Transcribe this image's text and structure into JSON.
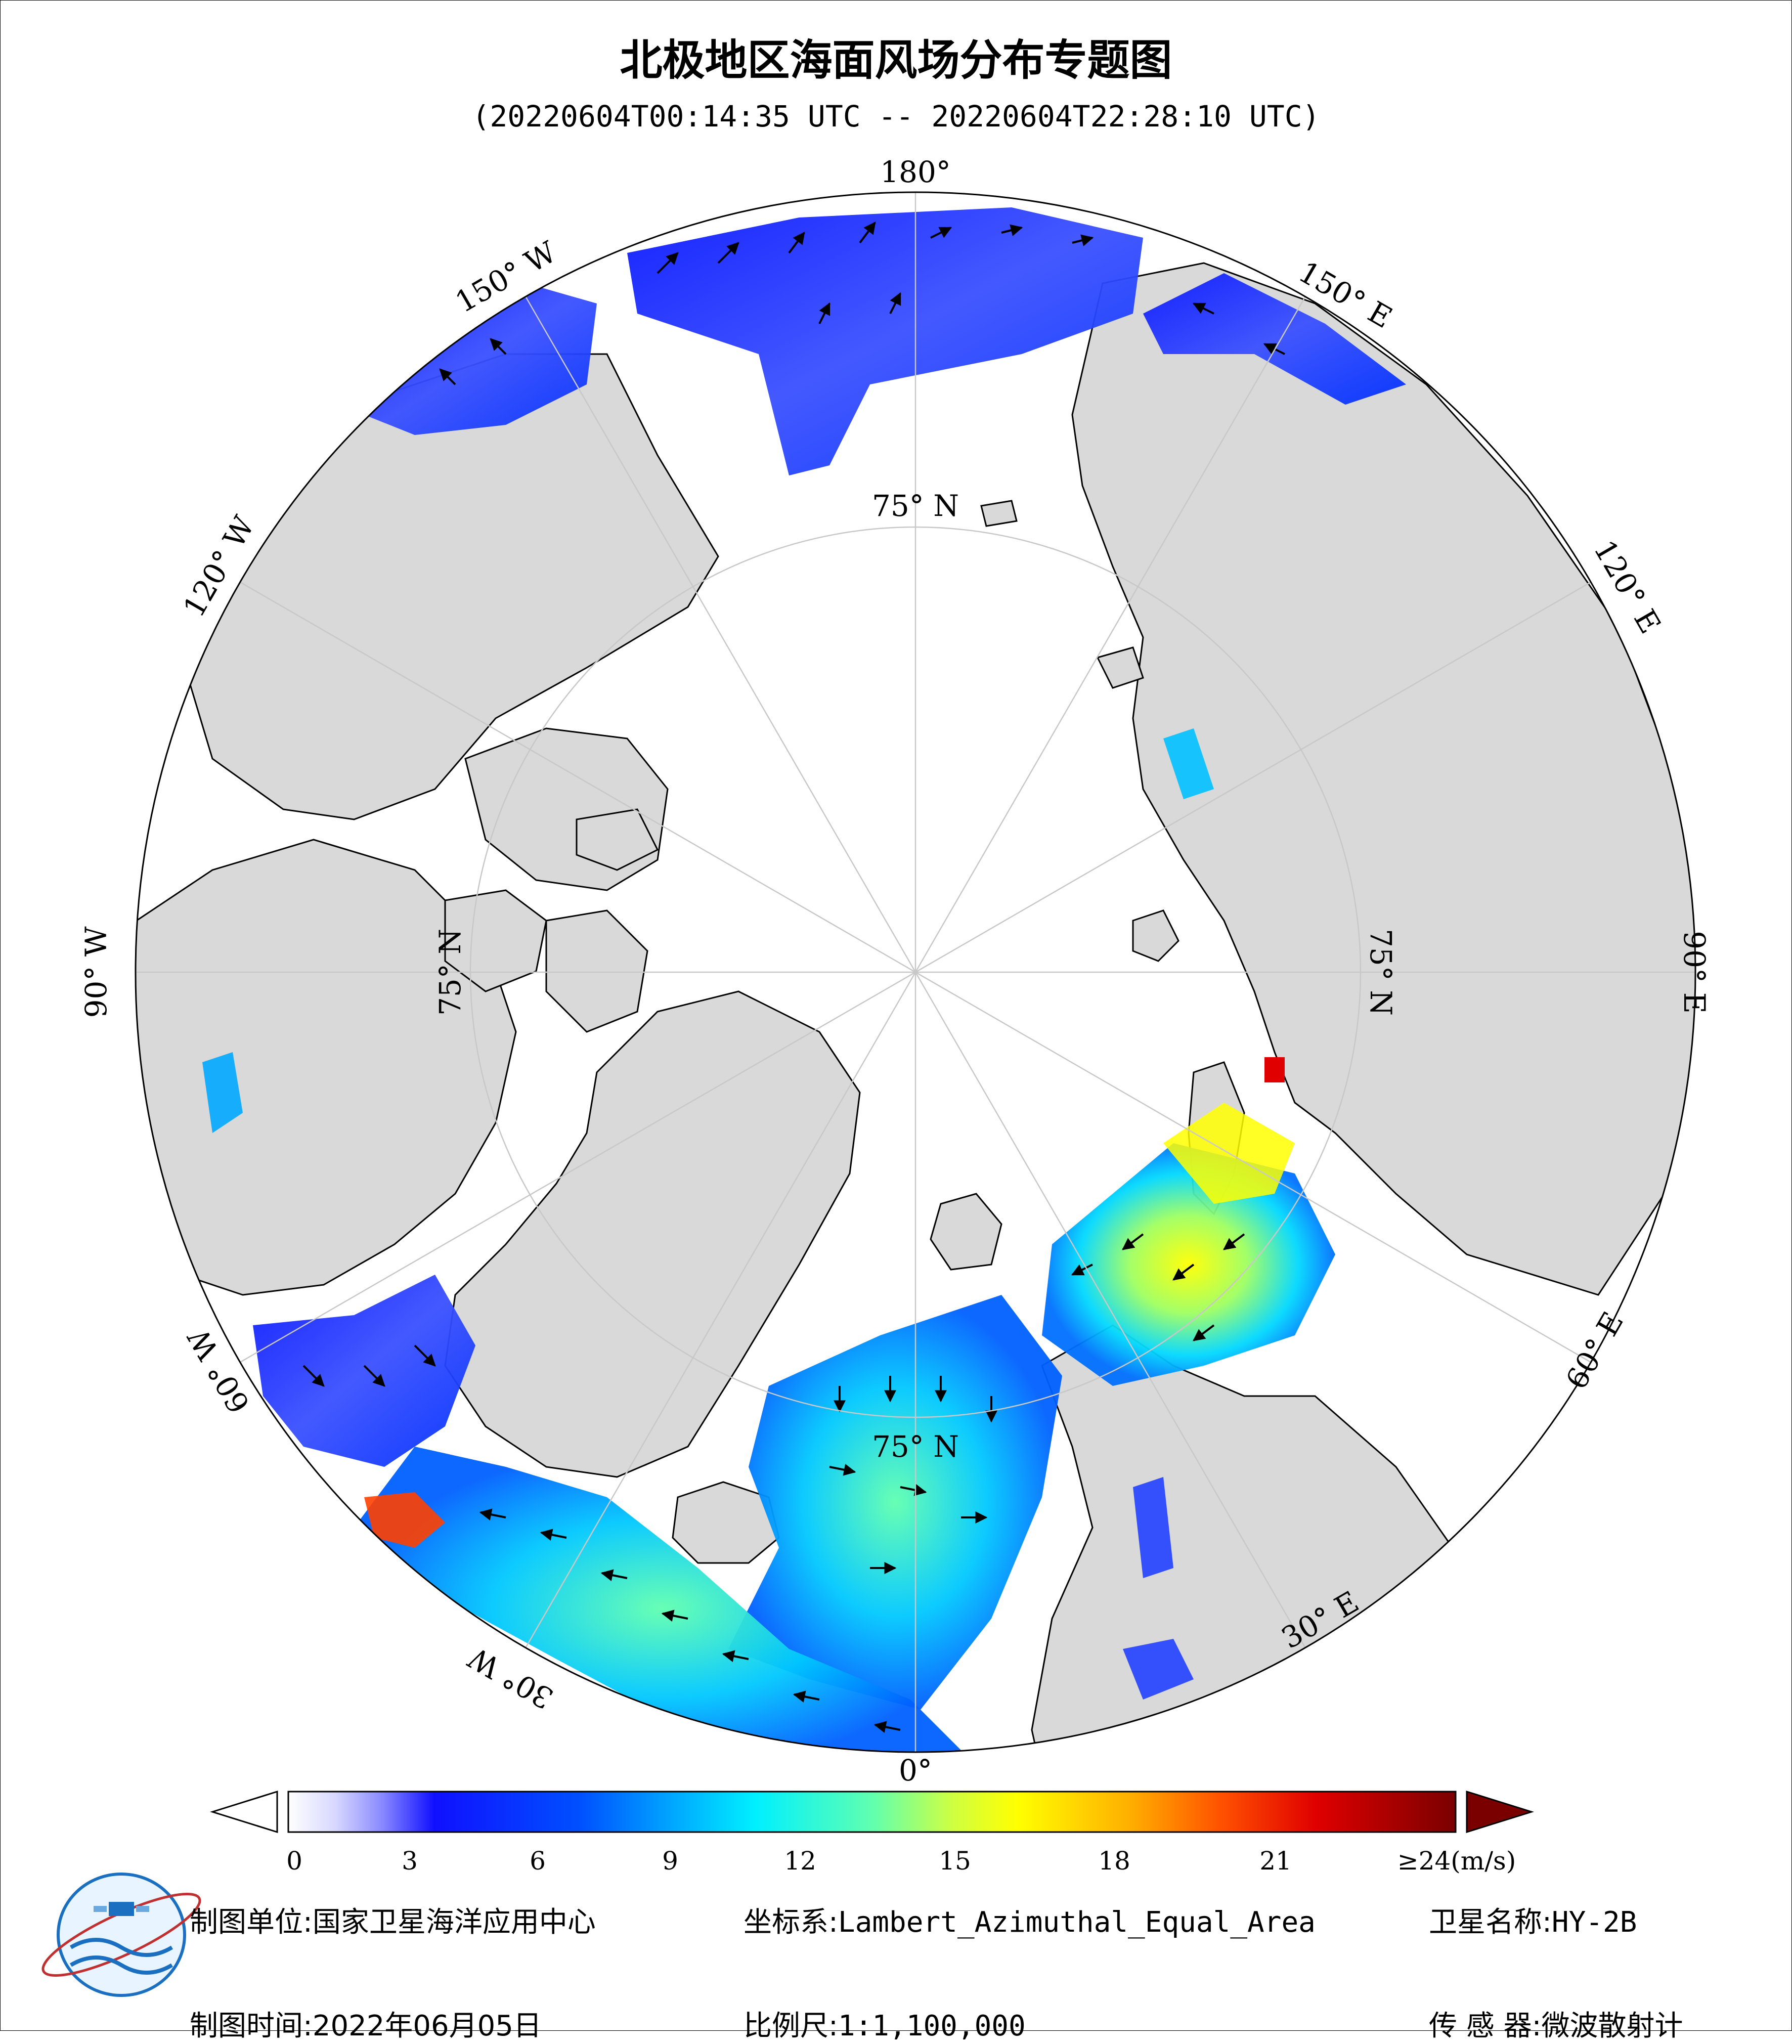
{
  "title": "北极地区海面风场分布专题图",
  "subtitle": "(20220604T00:14:35 UTC -- 20220604T22:28:10 UTC)",
  "map": {
    "projection": "Lambert_Azimuthal_Equal_Area",
    "center": "North Pole",
    "ocean_color": "#ffffff",
    "land_color": "#d9d9d9",
    "longitude_labels": [
      "180°",
      "150° E",
      "120° E",
      "90° E",
      "60° E",
      "30° E",
      "0°",
      "30° W",
      "60° W",
      "90° W",
      "120° W",
      "150° W"
    ],
    "latitude_labels": [
      "75° N",
      "75° N",
      "75° N",
      "75° N"
    ]
  },
  "colorbar": {
    "ticks": [
      "0",
      "3",
      "6",
      "9",
      "12",
      "15",
      "18",
      "21",
      "≥24(m/s)"
    ],
    "tick_values": [
      0,
      3,
      6,
      9,
      12,
      15,
      18,
      21,
      24
    ],
    "range": [
      0,
      24
    ],
    "colors": [
      "#ffffff",
      "#d8d8ff",
      "#8a8aff",
      "#1010ff",
      "#0050ff",
      "#00a8ff",
      "#00f0ff",
      "#60ffb0",
      "#d0ff40",
      "#ffff00",
      "#ffb000",
      "#ff5000",
      "#e00000",
      "#7a0000"
    ],
    "over_color": "#7a0000",
    "under_color": "#ffffff"
  },
  "footer": {
    "unit_label": "制图单位:",
    "unit_value": "国家卫星海洋应用中心",
    "crs_label": "坐标系:",
    "crs_value": "Lambert_Azimuthal_Equal_Area",
    "satellite_label": "卫星名称:",
    "satellite_value": "HY-2B",
    "date_label": "制图时间:",
    "date_value": "2022年06月05日",
    "scale_label": "比例尺:",
    "scale_value": "1:1,100,000",
    "sensor_label": "传 感 器:",
    "sensor_value": "微波散射计"
  }
}
